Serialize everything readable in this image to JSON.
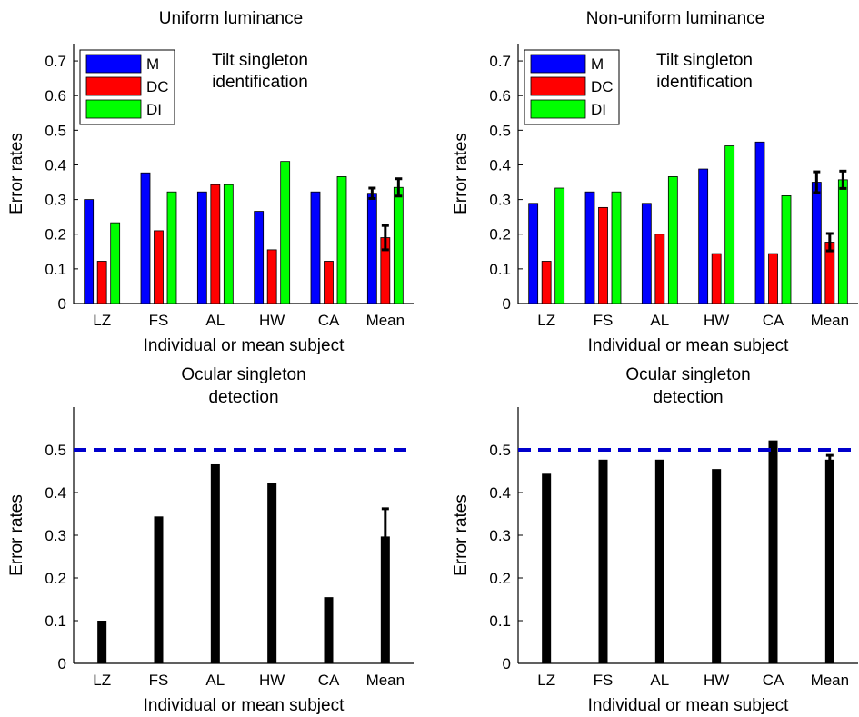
{
  "colors": {
    "M": "#0000ff",
    "DC": "#ff0000",
    "DI": "#00ff00",
    "single": "#000000",
    "reference": "#0000cc"
  },
  "chart_data": [
    {
      "id": "top-left",
      "type": "bar",
      "title": "Uniform luminance",
      "xlabel": "Individual or mean subject",
      "ylabel": "Error rates",
      "ylim": [
        0,
        0.75
      ],
      "yticks": [
        "0",
        "0.1",
        "0.2",
        "0.3",
        "0.4",
        "0.5",
        "0.6",
        "0.7"
      ],
      "categories": [
        "LZ",
        "FS",
        "AL",
        "HW",
        "CA",
        "Mean"
      ],
      "annotation": [
        "Tilt singleton",
        "identification"
      ],
      "legend": {
        "placement": "top-left",
        "entries": [
          "M",
          "DC",
          "DI"
        ]
      },
      "grid": false,
      "series": [
        {
          "name": "M",
          "values": [
            0.3,
            0.377,
            0.322,
            0.266,
            0.322,
            0.318
          ],
          "errors": [
            null,
            null,
            null,
            null,
            null,
            0.015
          ]
        },
        {
          "name": "DC",
          "values": [
            0.122,
            0.21,
            0.343,
            0.155,
            0.122,
            0.19
          ],
          "errors": [
            null,
            null,
            null,
            null,
            null,
            0.035
          ]
        },
        {
          "name": "DI",
          "values": [
            0.233,
            0.322,
            0.343,
            0.41,
            0.366,
            0.335
          ],
          "errors": [
            null,
            null,
            null,
            null,
            null,
            0.025
          ]
        }
      ]
    },
    {
      "id": "top-right",
      "type": "bar",
      "title": "Non-uniform luminance",
      "xlabel": "Individual or mean subject",
      "ylabel": "Error rates",
      "ylim": [
        0,
        0.75
      ],
      "yticks": [
        "0",
        "0.1",
        "0.2",
        "0.3",
        "0.4",
        "0.5",
        "0.6",
        "0.7"
      ],
      "categories": [
        "LZ",
        "FS",
        "AL",
        "HW",
        "CA",
        "Mean"
      ],
      "annotation": [
        "Tilt singleton",
        "identification"
      ],
      "legend": {
        "placement": "top-left",
        "entries": [
          "M",
          "DC",
          "DI"
        ]
      },
      "grid": false,
      "series": [
        {
          "name": "M",
          "values": [
            0.289,
            0.322,
            0.289,
            0.388,
            0.466,
            0.35
          ],
          "errors": [
            null,
            null,
            null,
            null,
            null,
            0.03
          ]
        },
        {
          "name": "DC",
          "values": [
            0.122,
            0.277,
            0.2,
            0.144,
            0.144,
            0.177
          ],
          "errors": [
            null,
            null,
            null,
            null,
            null,
            0.025
          ]
        },
        {
          "name": "DI",
          "values": [
            0.333,
            0.322,
            0.366,
            0.455,
            0.311,
            0.357
          ],
          "errors": [
            null,
            null,
            null,
            null,
            null,
            0.025
          ]
        }
      ]
    },
    {
      "id": "bottom-left",
      "type": "bar",
      "title": [
        "Ocular singleton",
        "detection"
      ],
      "xlabel": "Individual or mean subject",
      "ylabel": "Error rates",
      "ylim": [
        0,
        0.6
      ],
      "yticks": [
        "0",
        "0.1",
        "0.2",
        "0.3",
        "0.4",
        "0.5"
      ],
      "categories": [
        "LZ",
        "FS",
        "AL",
        "HW",
        "CA",
        "Mean"
      ],
      "reference_line": 0.5,
      "grid": false,
      "series": [
        {
          "values": [
            0.1,
            0.344,
            0.466,
            0.422,
            0.155,
            0.297
          ],
          "errors": [
            null,
            null,
            null,
            null,
            null,
            0.065
          ]
        }
      ]
    },
    {
      "id": "bottom-right",
      "type": "bar",
      "title": [
        "Ocular singleton",
        "detection"
      ],
      "xlabel": "Individual or mean subject",
      "ylabel": "Error rates",
      "ylim": [
        0,
        0.6
      ],
      "yticks": [
        "0",
        "0.1",
        "0.2",
        "0.3",
        "0.4",
        "0.5"
      ],
      "categories": [
        "LZ",
        "FS",
        "AL",
        "HW",
        "CA",
        "Mean"
      ],
      "reference_line": 0.5,
      "grid": false,
      "series": [
        {
          "values": [
            0.444,
            0.477,
            0.477,
            0.455,
            0.522,
            0.477
          ],
          "errors": [
            null,
            null,
            null,
            null,
            null,
            0.01
          ]
        }
      ]
    }
  ]
}
